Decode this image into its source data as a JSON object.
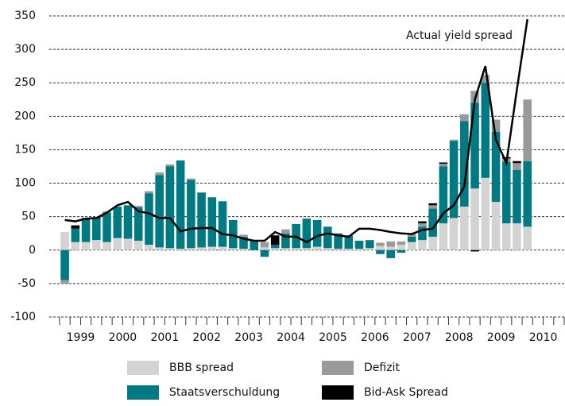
{
  "chart_data": {
    "type": "bar",
    "categories": [
      null,
      "1999",
      null,
      null,
      null,
      "2000",
      null,
      null,
      null,
      "2001",
      null,
      null,
      null,
      "2002",
      null,
      null,
      null,
      "2003",
      null,
      null,
      null,
      "2004",
      null,
      null,
      null,
      "2005",
      null,
      null,
      null,
      "2006",
      null,
      null,
      null,
      "2007",
      null,
      null,
      null,
      "2008",
      null,
      null,
      null,
      "2009",
      null,
      null,
      null,
      "2010",
      null,
      null
    ],
    "series": [
      {
        "name": "BBB spread",
        "color": "#d3d3d3",
        "values": [
          27,
          12,
          12,
          15,
          12,
          18,
          17,
          14,
          8,
          4,
          3,
          2,
          3,
          4,
          5,
          5,
          3,
          2,
          0,
          4,
          3,
          3,
          3,
          3,
          5,
          3,
          2,
          2,
          2,
          3,
          6,
          5,
          8,
          12,
          15,
          20,
          40,
          48,
          65,
          92,
          108,
          72,
          40,
          40,
          35,
          null,
          null,
          null
        ]
      },
      {
        "name": "Staatsverschuldung",
        "color": "#007a82",
        "values": [
          -45,
          20,
          33,
          32,
          44,
          47,
          50,
          50,
          77,
          108,
          122,
          132,
          102,
          82,
          74,
          68,
          42,
          18,
          13,
          -10,
          5,
          22,
          36,
          44,
          40,
          32,
          23,
          20,
          12,
          12,
          -6,
          -12,
          -4,
          8,
          20,
          42,
          85,
          115,
          128,
          128,
          142,
          105,
          92,
          80,
          98,
          null,
          null,
          null
        ]
      },
      {
        "name": "Defizit",
        "color": "#9a9a9a",
        "values": [
          -5,
          0,
          0,
          0,
          2,
          0,
          0,
          2,
          3,
          4,
          3,
          0,
          2,
          0,
          0,
          0,
          0,
          3,
          0,
          8,
          0,
          6,
          0,
          0,
          0,
          0,
          0,
          0,
          0,
          0,
          5,
          8,
          5,
          4,
          5,
          5,
          4,
          2,
          10,
          18,
          12,
          18,
          5,
          10,
          92,
          null,
          null,
          null
        ]
      },
      {
        "name": "Bid-Ask Spread",
        "color": "#000000",
        "values": [
          0,
          5,
          3,
          2,
          0,
          0,
          0,
          0,
          0,
          0,
          0,
          0,
          0,
          0,
          0,
          0,
          0,
          0,
          2,
          0,
          14,
          0,
          0,
          0,
          0,
          0,
          0,
          0,
          0,
          0,
          0,
          0,
          0,
          0,
          3,
          3,
          2,
          0,
          0,
          -2,
          0,
          0,
          2,
          3,
          0,
          null,
          null,
          null
        ]
      },
      {
        "name": "Actual yield spread",
        "type": "line",
        "color": "#000000",
        "values": [
          45,
          43,
          47,
          48,
          56,
          67,
          72,
          58,
          55,
          48,
          48,
          28,
          32,
          33,
          33,
          24,
          22,
          17,
          14,
          14,
          27,
          20,
          20,
          12,
          21,
          25,
          22,
          20,
          32,
          32,
          30,
          27,
          25,
          24,
          30,
          32,
          55,
          67,
          95,
          225,
          275,
          165,
          130,
          240,
          345,
          null,
          null,
          null
        ]
      }
    ],
    "ylim": [
      -100,
      350
    ],
    "yticks": [
      -100,
      -50,
      0,
      50,
      100,
      150,
      200,
      250,
      300,
      350
    ],
    "grid": true
  }
}
